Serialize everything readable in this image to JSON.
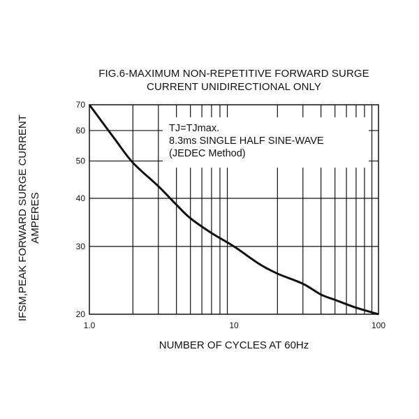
{
  "chart_data": {
    "type": "line",
    "title": "FIG.6-MAXIMUM NON-REPETITIVE FORWARD SURGE",
    "subtitle": "CURRENT UNIDIRECTIONAL ONLY",
    "xlabel": "NUMBER OF CYCLES AT 60Hz",
    "ylabel": "IFSM,PEAK FORWARD SURGE CURRENT",
    "ylabel2": "AMPERES",
    "xscale": "log",
    "yscale": "log",
    "xlim": [
      1,
      100
    ],
    "ylim": [
      20,
      70
    ],
    "x_tick_labels": [
      "1.0",
      "10",
      "100"
    ],
    "x_ticks": [
      1,
      10,
      100
    ],
    "y_tick_labels": [
      "20",
      "30",
      "40",
      "50",
      "60",
      "70"
    ],
    "y_ticks": [
      20,
      30,
      40,
      50,
      60,
      70
    ],
    "grid": true,
    "annotation": [
      "TJ=TJmax.",
      "8.3ms SINGLE HALF SINE-WAVE",
      "(JEDEC Method)"
    ],
    "series": [
      {
        "x": [
          1,
          1.5,
          2,
          3,
          4,
          5,
          7,
          10,
          15,
          20,
          30,
          40,
          50,
          70,
          100
        ],
        "y": [
          70,
          57,
          49.5,
          43,
          38.5,
          35.5,
          32.5,
          30,
          27,
          25.5,
          24,
          22.5,
          21.8,
          20.8,
          20
        ]
      }
    ]
  }
}
